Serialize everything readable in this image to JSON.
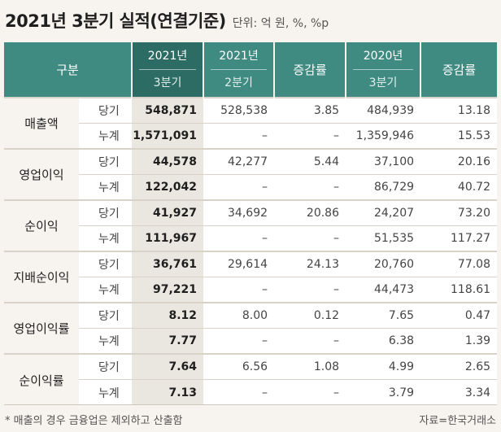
{
  "title": "2021년 3분기 실적(연결기준)",
  "unit": "단위: 억 원, %, %p",
  "headers": {
    "category": "구분",
    "col1_top": "2021년",
    "col1_bottom": "3분기",
    "col2_top": "2021년",
    "col2_bottom": "2분기",
    "col3": "증감률",
    "col4_top": "2020년",
    "col4_bottom": "3분기",
    "col5": "증감률"
  },
  "rows": [
    {
      "category": "매출액",
      "quarter": {
        "label": "당기",
        "v1": "548,871",
        "v2": "528,538",
        "v3": "3.85",
        "v4": "484,939",
        "v5": "13.18"
      },
      "cumulative": {
        "label": "누계",
        "v1": "1,571,091",
        "v2": "–",
        "v3": "–",
        "v4": "1,359,946",
        "v5": "15.53"
      }
    },
    {
      "category": "영업이익",
      "quarter": {
        "label": "당기",
        "v1": "44,578",
        "v2": "42,277",
        "v3": "5.44",
        "v4": "37,100",
        "v5": "20.16"
      },
      "cumulative": {
        "label": "누계",
        "v1": "122,042",
        "v2": "–",
        "v3": "–",
        "v4": "86,729",
        "v5": "40.72"
      }
    },
    {
      "category": "순이익",
      "quarter": {
        "label": "당기",
        "v1": "41,927",
        "v2": "34,692",
        "v3": "20.86",
        "v4": "24,207",
        "v5": "73.20"
      },
      "cumulative": {
        "label": "누계",
        "v1": "111,967",
        "v2": "–",
        "v3": "–",
        "v4": "51,535",
        "v5": "117.27"
      }
    },
    {
      "category": "지배순이익",
      "quarter": {
        "label": "당기",
        "v1": "36,761",
        "v2": "29,614",
        "v3": "24.13",
        "v4": "20,760",
        "v5": "77.08"
      },
      "cumulative": {
        "label": "누계",
        "v1": "97,221",
        "v2": "–",
        "v3": "–",
        "v4": "44,473",
        "v5": "118.61"
      }
    },
    {
      "category": "영업이익률",
      "quarter": {
        "label": "당기",
        "v1": "8.12",
        "v2": "8.00",
        "v3": "0.12",
        "v4": "7.65",
        "v5": "0.47"
      },
      "cumulative": {
        "label": "누계",
        "v1": "7.77",
        "v2": "–",
        "v3": "–",
        "v4": "6.38",
        "v5": "1.39"
      }
    },
    {
      "category": "순이익률",
      "quarter": {
        "label": "당기",
        "v1": "7.64",
        "v2": "6.56",
        "v3": "1.08",
        "v4": "4.99",
        "v5": "2.65"
      },
      "cumulative": {
        "label": "누계",
        "v1": "7.13",
        "v2": "–",
        "v3": "–",
        "v4": "3.79",
        "v5": "3.34"
      }
    }
  ],
  "footnote": "* 매출의 경우 금융업은 제외하고 산출함",
  "source": "자료=한국거래소",
  "colors": {
    "header": "#3f8b82",
    "header_highlight": "#2d6c65",
    "highlight_col": "#eae6e0",
    "background": "#f7f3ee"
  }
}
